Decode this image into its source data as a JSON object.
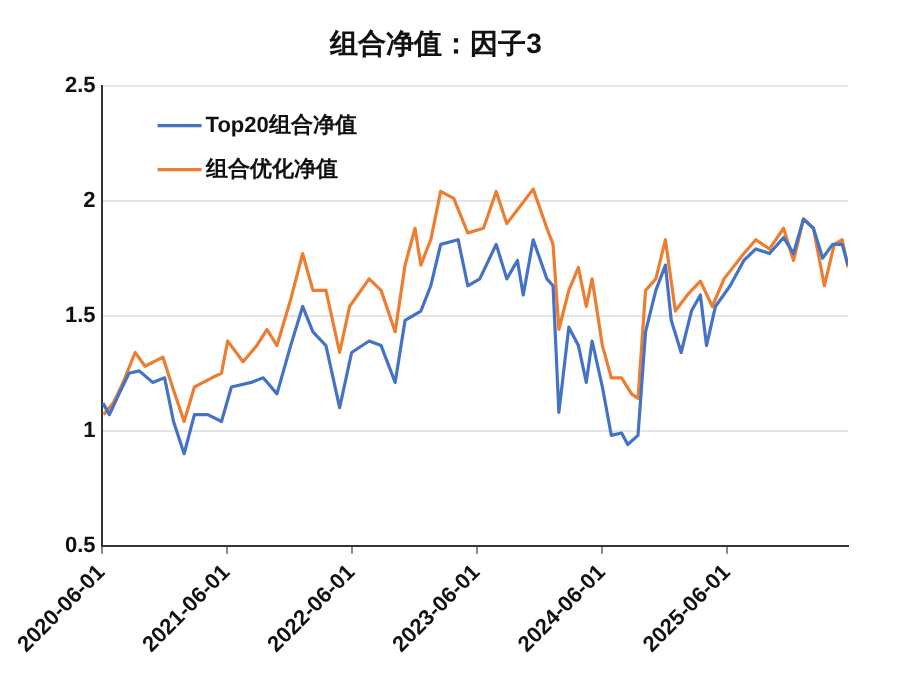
{
  "chart_data": {
    "type": "line",
    "title": "组合净值：因子3",
    "xlim": [
      "2020-06-01",
      "2026-05-20"
    ],
    "xticks": [
      "2020-06-01",
      "2021-06-01",
      "2022-06-01",
      "2023-06-01",
      "2024-06-01",
      "2025-06-01"
    ],
    "ylim": [
      0.5,
      2.5
    ],
    "yticks": [
      0.5,
      1,
      1.5,
      2,
      2.5
    ],
    "grid": "y",
    "legend": "top left",
    "marker": "none",
    "line_style": "solid",
    "series": [
      {
        "name": "Top20组合净值",
        "color": "#4472c4",
        "x": [
          "2020-06-05",
          "2020-06-24",
          "2020-07-22",
          "2020-08-20",
          "2020-09-19",
          "2020-10-28",
          "2020-12-02",
          "2020-12-28",
          "2021-01-28",
          "2021-02-27",
          "2021-04-07",
          "2021-05-17",
          "2021-06-15",
          "2021-08-12",
          "2021-09-16",
          "2021-10-26",
          "2021-12-05",
          "2022-01-09",
          "2022-02-08",
          "2022-03-18",
          "2022-04-27",
          "2022-06-01",
          "2022-07-22",
          "2022-08-26",
          "2022-10-06",
          "2022-11-04",
          "2022-12-20",
          "2023-01-18",
          "2023-02-16",
          "2023-04-08",
          "2023-05-06",
          "2023-06-10",
          "2023-07-28",
          "2023-08-28",
          "2023-09-28",
          "2023-10-15",
          "2023-11-13",
          "2023-12-23",
          "2024-01-10",
          "2024-01-27",
          "2024-02-25",
          "2024-03-24",
          "2024-04-16",
          "2024-05-03",
          "2024-06-02",
          "2024-06-28",
          "2024-07-28",
          "2024-08-15",
          "2024-09-14",
          "2024-10-06",
          "2024-11-05",
          "2024-12-03",
          "2024-12-20",
          "2025-01-18",
          "2025-02-17",
          "2025-03-15",
          "2025-04-02",
          "2025-04-28",
          "2025-06-10",
          "2025-07-20",
          "2025-08-24",
          "2025-10-03",
          "2025-11-13",
          "2025-12-12",
          "2026-01-10",
          "2026-02-08",
          "2026-03-07",
          "2026-04-05",
          "2026-05-03",
          "2026-05-20"
        ],
        "values": [
          1.12,
          1.07,
          1.16,
          1.25,
          1.26,
          1.21,
          1.23,
          1.04,
          0.9,
          1.07,
          1.07,
          1.04,
          1.19,
          1.21,
          1.23,
          1.16,
          1.37,
          1.54,
          1.43,
          1.37,
          1.1,
          1.34,
          1.39,
          1.37,
          1.21,
          1.48,
          1.52,
          1.63,
          1.81,
          1.83,
          1.63,
          1.66,
          1.81,
          1.66,
          1.74,
          1.59,
          1.83,
          1.66,
          1.63,
          1.08,
          1.45,
          1.37,
          1.21,
          1.39,
          1.19,
          0.98,
          0.99,
          0.94,
          0.98,
          1.43,
          1.61,
          1.72,
          1.48,
          1.34,
          1.52,
          1.59,
          1.37,
          1.54,
          1.63,
          1.74,
          1.79,
          1.77,
          1.84,
          1.77,
          1.92,
          1.88,
          1.75,
          1.81,
          1.81,
          1.72
        ]
      },
      {
        "name": "组合优化净值",
        "color": "#ed7d31",
        "x": [
          "2020-06-07",
          "2020-07-05",
          "2020-08-03",
          "2020-09-07",
          "2020-10-06",
          "2020-11-27",
          "2020-12-25",
          "2021-01-28",
          "2021-02-27",
          "2021-04-19",
          "2021-05-17",
          "2021-06-04",
          "2021-07-19",
          "2021-08-28",
          "2021-09-27",
          "2021-10-26",
          "2021-12-05",
          "2022-01-09",
          "2022-02-08",
          "2022-03-18",
          "2022-04-27",
          "2022-05-26",
          "2022-07-22",
          "2022-08-26",
          "2022-10-06",
          "2022-11-04",
          "2022-12-03",
          "2022-12-20",
          "2023-01-18",
          "2023-02-16",
          "2023-03-26",
          "2023-05-06",
          "2023-06-21",
          "2023-07-28",
          "2023-08-28",
          "2023-10-03",
          "2023-11-13",
          "2023-12-23",
          "2024-01-10",
          "2024-01-27",
          "2024-02-25",
          "2024-03-24",
          "2024-04-16",
          "2024-05-03",
          "2024-06-02",
          "2024-06-28",
          "2024-07-28",
          "2024-08-26",
          "2024-09-14",
          "2024-10-06",
          "2024-11-05",
          "2024-12-03",
          "2025-01-01",
          "2025-02-05",
          "2025-03-15",
          "2025-04-19",
          "2025-05-23",
          "2025-07-20",
          "2025-08-24",
          "2025-10-03",
          "2025-11-13",
          "2025-12-12",
          "2026-01-10",
          "2026-02-08",
          "2026-03-12",
          "2026-04-10",
          "2026-05-03",
          "2026-05-20"
        ],
        "values": [
          1.07,
          1.12,
          1.21,
          1.34,
          1.28,
          1.32,
          1.19,
          1.04,
          1.19,
          1.23,
          1.25,
          1.39,
          1.3,
          1.37,
          1.44,
          1.37,
          1.57,
          1.77,
          1.61,
          1.61,
          1.34,
          1.54,
          1.66,
          1.61,
          1.43,
          1.72,
          1.88,
          1.72,
          1.83,
          2.04,
          2.01,
          1.86,
          1.88,
          2.04,
          1.9,
          1.97,
          2.05,
          1.88,
          1.81,
          1.44,
          1.61,
          1.71,
          1.54,
          1.66,
          1.37,
          1.23,
          1.23,
          1.16,
          1.14,
          1.61,
          1.66,
          1.83,
          1.52,
          1.59,
          1.65,
          1.54,
          1.66,
          1.77,
          1.83,
          1.79,
          1.88,
          1.74,
          1.92,
          1.88,
          1.63,
          1.81,
          1.83,
          1.71
        ]
      }
    ]
  }
}
